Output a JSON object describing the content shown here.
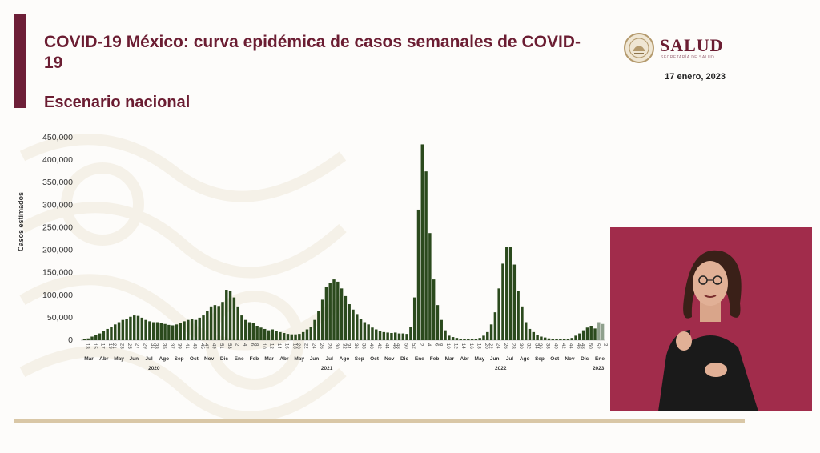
{
  "header": {
    "title": "COVID-19 México: curva epidémica de casos semanales de COVID-19",
    "subtitle": "Escenario nacional",
    "date": "17 enero, 2023"
  },
  "logo": {
    "name": "SALUD",
    "tagline": "SECRETARÍA DE SALUD"
  },
  "colors": {
    "brand": "#6b1d32",
    "bar": "#2b4a1d",
    "bar_last": "#8fa08c",
    "accent_line": "#d9c7a6",
    "interpreter_bg": "#a12c4b"
  },
  "chart_data": {
    "type": "bar",
    "ylabel": "Casos estimados",
    "ylim": [
      0,
      450000
    ],
    "yticks": [
      0,
      50000,
      100000,
      150000,
      200000,
      250000,
      300000,
      350000,
      400000,
      450000
    ],
    "ytick_labels": [
      "0",
      "50,000",
      "100,000",
      "150,000",
      "200,000",
      "250,000",
      "300,000",
      "350,000",
      "400,000",
      "450,000"
    ],
    "week_labels": [
      "13",
      "15",
      "17",
      "19",
      "21",
      "23",
      "25",
      "27",
      "29",
      "31",
      "33",
      "35",
      "37",
      "39",
      "41",
      "43",
      "45",
      "47",
      "49",
      "51",
      "53",
      "2",
      "4",
      "6",
      "8",
      "10",
      "12",
      "14",
      "16",
      "18",
      "20",
      "22",
      "24",
      "26",
      "28",
      "30",
      "32",
      "34",
      "36",
      "38",
      "40",
      "42",
      "44",
      "46",
      "48",
      "50",
      "52",
      "2",
      "4",
      "6",
      "8",
      "10",
      "12",
      "14",
      "16",
      "18",
      "20",
      "22",
      "24",
      "26",
      "28",
      "30",
      "32",
      "34",
      "36",
      "38",
      "40",
      "42",
      "44",
      "46",
      "48",
      "50",
      "52",
      "2"
    ],
    "months": [
      "Mar",
      "Abr",
      "May",
      "Jun",
      "Jul",
      "Ago",
      "Sep",
      "Oct",
      "Nov",
      "Dic",
      "Ene",
      "Feb",
      "Mar",
      "Abr",
      "May",
      "Jun",
      "Jul",
      "Ago",
      "Sep",
      "Oct",
      "Nov",
      "Dic",
      "Ene",
      "Feb",
      "Mar",
      "Abr",
      "May",
      "Jun",
      "Jul",
      "Ago",
      "Sep",
      "Oct",
      "Nov",
      "Dic",
      "Ene"
    ],
    "years": [
      "2020",
      "2021",
      "2022",
      "2023"
    ],
    "values": [
      2000,
      4000,
      8000,
      12000,
      15000,
      20000,
      25000,
      30000,
      35000,
      40000,
      45000,
      48000,
      52000,
      55000,
      54000,
      50000,
      45000,
      42000,
      40000,
      40000,
      38000,
      36000,
      34000,
      33000,
      35000,
      38000,
      42000,
      45000,
      48000,
      45000,
      50000,
      55000,
      65000,
      75000,
      78000,
      76000,
      85000,
      112000,
      110000,
      95000,
      75000,
      55000,
      45000,
      40000,
      38000,
      32000,
      28000,
      25000,
      22000,
      24000,
      20000,
      18000,
      16000,
      14000,
      13000,
      13000,
      14000,
      18000,
      24000,
      30000,
      45000,
      65000,
      90000,
      118000,
      128000,
      135000,
      130000,
      115000,
      98000,
      80000,
      68000,
      58000,
      48000,
      40000,
      35000,
      28000,
      24000,
      20000,
      18000,
      17000,
      16000,
      17000,
      15000,
      15000,
      14000,
      30000,
      95000,
      290000,
      435000,
      375000,
      238000,
      135000,
      78000,
      45000,
      22000,
      10000,
      7000,
      5000,
      3000,
      3000,
      2000,
      2000,
      3000,
      5000,
      10000,
      18000,
      35000,
      62000,
      115000,
      170000,
      208000,
      208000,
      168000,
      110000,
      75000,
      40000,
      25000,
      18000,
      12000,
      8000,
      6000,
      4000,
      3000,
      3000,
      2000,
      2000,
      3000,
      5000,
      10000,
      15000,
      22000,
      28000,
      32000,
      26000,
      40000,
      36000
    ],
    "final_weeks_estimated": 2
  }
}
